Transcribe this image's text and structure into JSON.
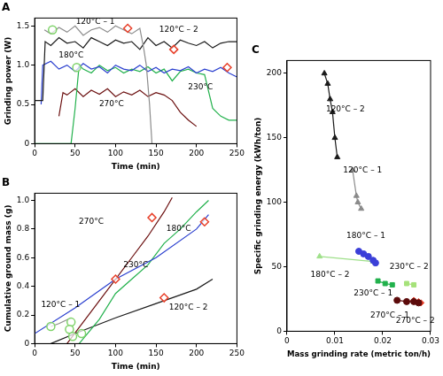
{
  "chart_data": [
    {
      "type": "line",
      "title": "A",
      "x_label": "Time (min)",
      "y_label": "Grinding power (W)",
      "xlim": [
        0,
        250
      ],
      "xticks": [
        0,
        50,
        100,
        150,
        200,
        250
      ],
      "ylim": [
        0,
        1.6
      ],
      "yticks": [
        0,
        0.5,
        {
          "value": 1,
          "label": "1.0"
        },
        1.5
      ],
      "grid": false,
      "series": [
        {
          "name": "120°C – 1",
          "color": "#8c8c8c",
          "line_style": "solid",
          "marker": "none",
          "x": [
            12,
            20,
            30,
            40,
            50,
            60,
            70,
            80,
            90,
            100,
            110,
            120,
            130,
            135,
            138,
            142,
            145
          ],
          "values": [
            1.45,
            1.4,
            1.48,
            1.42,
            1.5,
            1.38,
            1.45,
            1.48,
            1.42,
            1.5,
            1.45,
            1.4,
            1.47,
            1.2,
            1.0,
            0.5,
            0
          ]
        },
        {
          "name": "120°C – 2",
          "color": "#1a1a1a",
          "line_style": "solid",
          "marker": "none",
          "x": [
            0,
            10,
            13,
            20,
            30,
            40,
            50,
            60,
            70,
            80,
            90,
            100,
            110,
            120,
            130,
            140,
            150,
            160,
            170,
            180,
            190,
            200,
            210,
            220,
            230,
            240,
            250
          ],
          "values": [
            0.55,
            0.55,
            1.3,
            1.25,
            1.35,
            1.28,
            1.3,
            1.22,
            1.35,
            1.3,
            1.25,
            1.32,
            1.28,
            1.3,
            1.2,
            1.35,
            1.25,
            1.3,
            1.22,
            1.32,
            1.28,
            1.25,
            1.3,
            1.22,
            1.28,
            1.3,
            1.3
          ]
        },
        {
          "name": "180°C",
          "color": "#2a3fcf",
          "line_style": "solid",
          "marker": "none",
          "x": [
            8,
            10,
            20,
            30,
            40,
            50,
            60,
            70,
            80,
            90,
            100,
            110,
            120,
            130,
            140,
            150,
            160,
            170,
            180,
            190,
            200,
            210,
            220,
            230,
            240,
            250
          ],
          "values": [
            0.5,
            1.0,
            1.05,
            0.95,
            1.0,
            0.92,
            1.02,
            0.95,
            0.98,
            0.9,
            1.0,
            0.95,
            0.93,
            1.0,
            0.92,
            0.97,
            0.9,
            0.95,
            0.93,
            0.98,
            0.9,
            0.95,
            0.92,
            0.97,
            0.9,
            0.85
          ]
        },
        {
          "name": "230°C",
          "color": "#22b14c",
          "line_style": "solid",
          "marker": "none",
          "x": [
            0,
            45,
            50,
            55,
            60,
            70,
            80,
            90,
            100,
            110,
            120,
            130,
            140,
            150,
            160,
            170,
            180,
            190,
            200,
            210,
            220,
            230,
            240,
            250
          ],
          "values": [
            0,
            0,
            0.45,
            1.0,
            0.95,
            0.9,
            1.0,
            0.93,
            0.97,
            0.9,
            0.95,
            0.92,
            0.98,
            0.9,
            0.95,
            0.8,
            0.92,
            0.95,
            0.9,
            0.88,
            0.45,
            0.35,
            0.3,
            0.3
          ]
        },
        {
          "name": "270°C",
          "color": "#6b0f0f",
          "line_style": "solid",
          "marker": "none",
          "x": [
            30,
            35,
            40,
            50,
            60,
            70,
            80,
            90,
            100,
            110,
            120,
            130,
            140,
            150,
            160,
            170,
            180,
            190,
            200
          ],
          "values": [
            0.35,
            0.65,
            0.62,
            0.7,
            0.6,
            0.68,
            0.63,
            0.7,
            0.6,
            0.66,
            0.62,
            0.68,
            0.6,
            0.65,
            0.62,
            0.55,
            0.4,
            0.3,
            0.22
          ]
        },
        {
          "color": "#7fd36a",
          "line_style": "none",
          "marker": "circle",
          "x": [
            22,
            52
          ],
          "values": [
            1.45,
            0.97
          ]
        },
        {
          "color": "#e8402a",
          "line_style": "none",
          "marker": "diamond",
          "x": [
            115,
            172,
            238
          ],
          "values": [
            1.47,
            1.2,
            0.97
          ]
        }
      ],
      "annotations": [
        {
          "text": "120°C – 1",
          "x": 75,
          "y": 1.55
        },
        {
          "text": "120°C – 2",
          "x": 178,
          "y": 1.45
        },
        {
          "text": "180°C",
          "x": 45,
          "y": 1.12
        },
        {
          "text": "230°C",
          "x": 205,
          "y": 0.72
        },
        {
          "text": "270°C",
          "x": 95,
          "y": 0.5
        }
      ]
    },
    {
      "type": "line",
      "title": "B",
      "x_label": "Time (min)",
      "y_label": "Cumulative ground mass (g)",
      "xlim": [
        0,
        250
      ],
      "xticks": [
        0,
        50,
        100,
        150,
        200,
        250
      ],
      "ylim": [
        0,
        1.05
      ],
      "yticks": [
        0,
        0.2,
        0.4,
        0.6,
        0.8,
        {
          "value": 1,
          "label": "1.0"
        }
      ],
      "grid": false,
      "series": [
        {
          "name": "270°C",
          "color": "#6b0f0f",
          "line_style": "solid",
          "marker": "none",
          "x": [
            40,
            60,
            80,
            100,
            120,
            140,
            160,
            170
          ],
          "values": [
            0,
            0.15,
            0.3,
            0.45,
            0.6,
            0.75,
            0.92,
            1.02
          ]
        },
        {
          "name": "180°C",
          "color": "#2a3fcf",
          "line_style": "solid",
          "marker": "none",
          "x": [
            0,
            50,
            100,
            150,
            200,
            215
          ],
          "values": [
            0.07,
            0.25,
            0.45,
            0.6,
            0.8,
            0.9
          ]
        },
        {
          "name": "230°C",
          "color": "#22b14c",
          "line_style": "solid",
          "marker": "none",
          "x": [
            55,
            80,
            100,
            120,
            140,
            160,
            180,
            200,
            215
          ],
          "values": [
            0,
            0.17,
            0.35,
            0.45,
            0.55,
            0.7,
            0.8,
            0.92,
            1.0
          ]
        },
        {
          "name": "120°C – 2",
          "color": "#1a1a1a",
          "line_style": "solid",
          "marker": "none",
          "x": [
            20,
            50,
            100,
            150,
            200,
            220
          ],
          "values": [
            0,
            0.07,
            0.18,
            0.28,
            0.38,
            0.45
          ]
        },
        {
          "name": "120°C – 1",
          "color": "#8c8c8c",
          "line_style": "solid",
          "marker": "none",
          "x": [
            20,
            30,
            45
          ],
          "values": [
            0.12,
            0.14,
            0.18
          ]
        },
        {
          "color": "#7fd36a",
          "line_style": "none",
          "marker": "circle",
          "x": [
            20,
            45,
            43,
            47,
            58
          ],
          "values": [
            0.12,
            0.15,
            0.1,
            0.05,
            0.07
          ]
        },
        {
          "color": "#e8402a",
          "line_style": "none",
          "marker": "diamond",
          "x": [
            145,
            210,
            100,
            160
          ],
          "values": [
            0.88,
            0.85,
            0.45,
            0.32
          ]
        }
      ],
      "annotations": [
        {
          "text": "270°C",
          "x": 70,
          "y": 0.85
        },
        {
          "text": "180°C",
          "x": 178,
          "y": 0.8
        },
        {
          "text": "230°C",
          "x": 125,
          "y": 0.55
        },
        {
          "text": "120°C – 2",
          "x": 190,
          "y": 0.25
        },
        {
          "text": "120°C – 1",
          "x": 32,
          "y": 0.27
        }
      ]
    },
    {
      "type": "scatter",
      "title": "C",
      "x_label": "Mass grinding rate (metric ton/h)",
      "y_label": "Specific grinding energy (kWh/ton)",
      "xlim": [
        0,
        0.03
      ],
      "xticks": [
        0,
        0.01,
        0.02,
        0.03
      ],
      "ylim": [
        0,
        210
      ],
      "yticks": [
        0,
        50,
        100,
        150,
        200
      ],
      "grid": false,
      "series": [
        {
          "name": "120°C – 2",
          "color": "#1a1a1a",
          "line_style": "solid",
          "marker": "triangle",
          "x": [
            0.0078,
            0.0085,
            0.009,
            0.0095,
            0.01,
            0.0105
          ],
          "values": [
            200,
            192,
            180,
            170,
            150,
            135
          ]
        },
        {
          "name": "120°C – 1",
          "color": "#8a8a8a",
          "line_style": "solid",
          "marker": "triangle",
          "x": [
            0.0137,
            0.0145,
            0.0148,
            0.0155
          ],
          "values": [
            125,
            105,
            100,
            95
          ]
        },
        {
          "name": "180°C – 1",
          "color": "#3b3fd8",
          "line_style": "solid",
          "marker": "circle",
          "x": [
            0.015,
            0.016,
            0.017,
            0.018,
            0.0185
          ],
          "values": [
            62,
            60,
            58,
            55,
            53
          ]
        },
        {
          "name": "180°C – 2",
          "color": "#9fe08a",
          "line_style": "solid",
          "marker": "triangle",
          "x": [
            0.0068,
            0.018
          ],
          "values": [
            58,
            54
          ]
        },
        {
          "name": "230°C – 1",
          "color": "#22b14c",
          "line_style": "solid",
          "marker": "square",
          "x": [
            0.019,
            0.0205,
            0.022
          ],
          "values": [
            39,
            37,
            36
          ]
        },
        {
          "name": "230°C – 2",
          "color": "#a6e27a",
          "line_style": "solid",
          "marker": "square",
          "x": [
            0.025,
            0.0265
          ],
          "values": [
            37,
            36
          ]
        },
        {
          "name": "270°C – 1",
          "color": "#5c0b0b",
          "line_style": "solid",
          "marker": "circle",
          "x": [
            0.023,
            0.025,
            0.0265,
            0.0275
          ],
          "values": [
            24,
            23,
            23,
            22
          ]
        },
        {
          "name": "270°C – 2",
          "color": "#e8402a",
          "line_style": "solid",
          "marker": "diamond",
          "x": [
            0.0265,
            0.0275,
            0.028
          ],
          "values": [
            24,
            23,
            22
          ]
        }
      ],
      "annotations": [
        {
          "text": "120°C – 2",
          "x": 0.0122,
          "y": 172
        },
        {
          "text": "120°C – 1",
          "x": 0.0158,
          "y": 125
        },
        {
          "text": "180°C – 1",
          "x": 0.0165,
          "y": 74
        },
        {
          "text": "180°C – 2",
          "x": 0.009,
          "y": 44
        },
        {
          "text": "230°C – 1",
          "x": 0.018,
          "y": 29
        },
        {
          "text": "230°C – 2",
          "x": 0.0255,
          "y": 50
        },
        {
          "text": "270°C – 1",
          "x": 0.0215,
          "y": 12
        },
        {
          "text": "270°C – 2",
          "x": 0.0268,
          "y": 8
        }
      ]
    }
  ]
}
